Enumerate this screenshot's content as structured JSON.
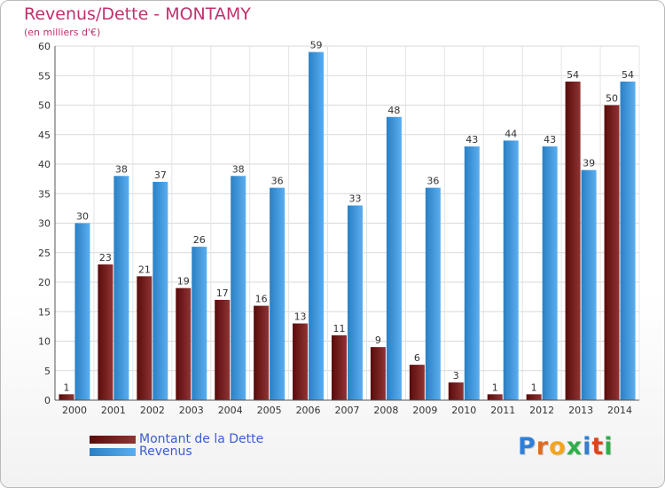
{
  "header": {
    "title": "Revenus/Dette - MONTAMY",
    "subtitle": "(en milliers d'€)"
  },
  "legend": {
    "debt_label": "Montant de la Dette",
    "revenue_label": "Revenus"
  },
  "logo": {
    "text": "Proxiti"
  },
  "colors": {
    "debt": "#7a1c1c",
    "revenue": "#3d9be0",
    "title": "#c2306e",
    "legend_text": "#3b5cd8"
  },
  "chart_data": {
    "type": "bar",
    "title": "Revenus/Dette - MONTAMY",
    "subtitle": "(en milliers d'€)",
    "categories": [
      "2000",
      "2001",
      "2002",
      "2003",
      "2004",
      "2005",
      "2006",
      "2007",
      "2008",
      "2009",
      "2010",
      "2011",
      "2012",
      "2013",
      "2014"
    ],
    "series": [
      {
        "name": "Montant de la Dette",
        "values": [
          1,
          23,
          21,
          19,
          17,
          16,
          13,
          11,
          9,
          6,
          3,
          1,
          1,
          54,
          50
        ]
      },
      {
        "name": "Revenus",
        "values": [
          30,
          38,
          37,
          26,
          38,
          36,
          59,
          33,
          48,
          36,
          43,
          44,
          43,
          39,
          54
        ]
      }
    ],
    "yticks": [
      0,
      5,
      10,
      15,
      20,
      25,
      30,
      35,
      40,
      45,
      50,
      55,
      60
    ],
    "ylim": [
      0,
      60
    ],
    "xlabel": "",
    "ylabel": "",
    "grid": true,
    "legend_position": "bottom-left"
  }
}
